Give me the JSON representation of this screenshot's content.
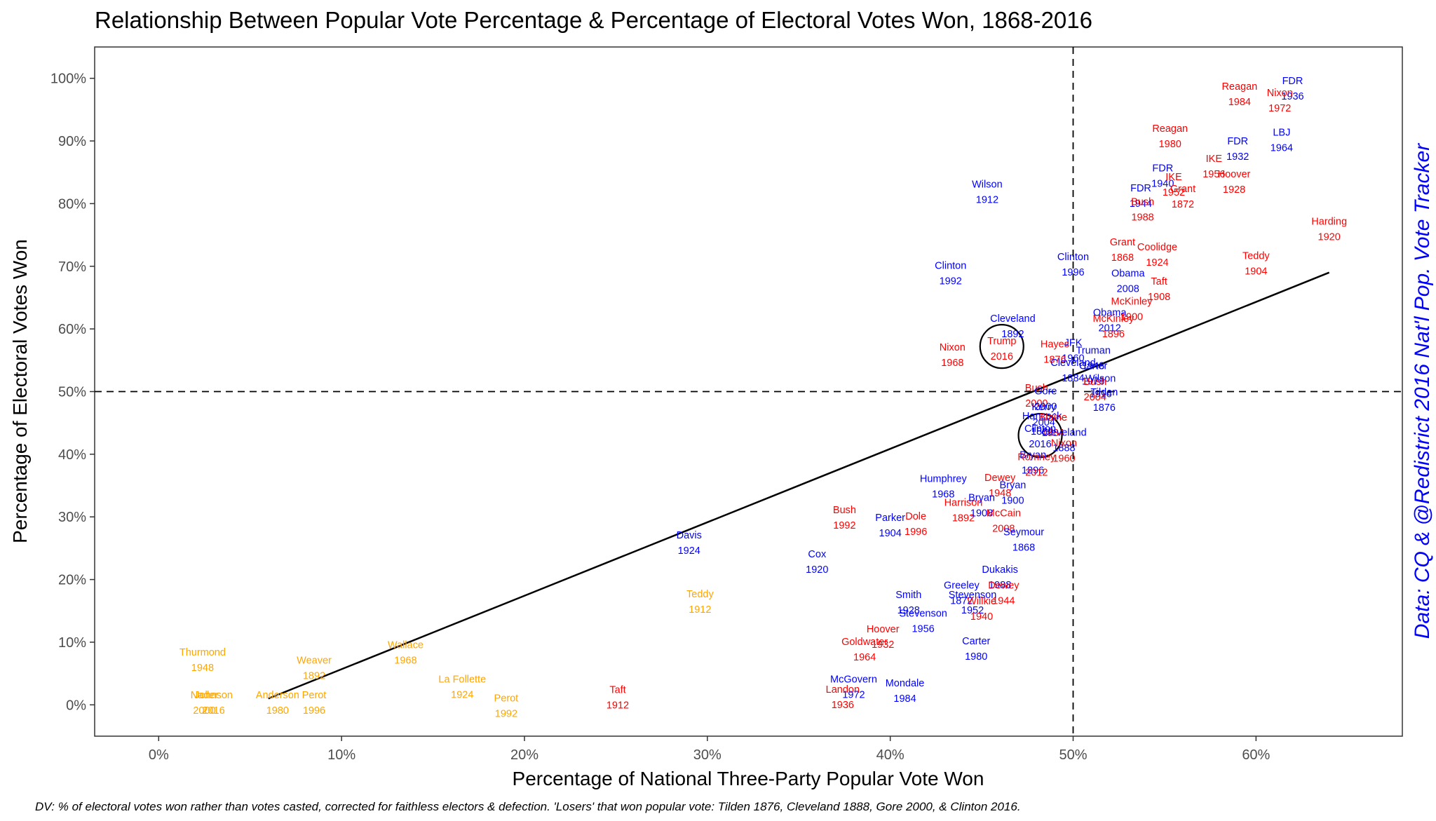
{
  "chart_data": {
    "type": "scatter",
    "title": "Relationship Between Popular Vote Percentage & Percentage of Electoral Votes Won, 1868-2016",
    "xlabel": "Percentage of National Three-Party Popular Vote Won",
    "ylabel": "Percentage of Electoral Votes Won",
    "caption": "DV: % of electoral votes won rather than votes casted, corrected for faithless electors & defection. 'Losers' that won popular vote: Tilden 1876, Cleveland 1888, Gore 2000, & Clinton 2016.",
    "source": "Data: CQ & @Redistrict 2016 Nat'l Pop. Vote Tracker",
    "xlim": [
      -3.5,
      68
    ],
    "ylim": [
      -5,
      105
    ],
    "x_ticks": [
      0,
      10,
      20,
      30,
      40,
      50,
      60
    ],
    "x_tick_labels": [
      "0%",
      "10%",
      "20%",
      "30%",
      "40%",
      "50%",
      "60%"
    ],
    "y_ticks": [
      0,
      10,
      20,
      30,
      40,
      50,
      60,
      70,
      80,
      90,
      100
    ],
    "y_tick_labels": [
      "0%",
      "10%",
      "20%",
      "30%",
      "40%",
      "50%",
      "60%",
      "70%",
      "80%",
      "90%",
      "100%"
    ],
    "reference_lines": {
      "x": 50,
      "y": 50,
      "style": "dashed"
    },
    "trend_line": {
      "x": [
        6,
        64
      ],
      "y": [
        1,
        69
      ]
    },
    "highlight_circles": [
      {
        "x": 46.1,
        "y": 57.2
      },
      {
        "x": 48.2,
        "y": 43.0
      }
    ],
    "grid": false,
    "colors": {
      "dem": "#0000ff",
      "rep": "#ff0000",
      "third": "#ffa500"
    },
    "points": [
      {
        "name": "FDR",
        "year": "1936",
        "x": 62.0,
        "y": 98.5,
        "party": "dem"
      },
      {
        "name": "Reagan",
        "year": "1984",
        "x": 59.1,
        "y": 97.6,
        "party": "rep"
      },
      {
        "name": "Nixon",
        "year": "1972",
        "x": 61.3,
        "y": 96.6,
        "party": "rep"
      },
      {
        "name": "Reagan",
        "year": "1980",
        "x": 55.3,
        "y": 90.9,
        "party": "rep"
      },
      {
        "name": "LBJ",
        "year": "1964",
        "x": 61.4,
        "y": 90.3,
        "party": "dem"
      },
      {
        "name": "FDR",
        "year": "1932",
        "x": 59.0,
        "y": 88.9,
        "party": "dem"
      },
      {
        "name": "IKE",
        "year": "1956",
        "x": 57.7,
        "y": 86.1,
        "party": "rep"
      },
      {
        "name": "FDR",
        "year": "1940",
        "x": 54.9,
        "y": 84.6,
        "party": "dem"
      },
      {
        "name": "Hoover",
        "year": "1928",
        "x": 58.8,
        "y": 83.6,
        "party": "rep"
      },
      {
        "name": "IKE",
        "year": "1952",
        "x": 55.5,
        "y": 83.2,
        "party": "rep"
      },
      {
        "name": "FDR",
        "year": "1944",
        "x": 53.7,
        "y": 81.4,
        "party": "dem"
      },
      {
        "name": "Grant",
        "year": "1872",
        "x": 56.0,
        "y": 81.3,
        "party": "rep"
      },
      {
        "name": "Bush",
        "year": "1988",
        "x": 53.8,
        "y": 79.2,
        "party": "rep"
      },
      {
        "name": "Harding",
        "year": "1920",
        "x": 64.0,
        "y": 76.1,
        "party": "rep"
      },
      {
        "name": "Grant",
        "year": "1868",
        "x": 52.7,
        "y": 72.8,
        "party": "rep"
      },
      {
        "name": "Teddy",
        "year": "1904",
        "x": 60.0,
        "y": 70.6,
        "party": "rep"
      },
      {
        "name": "Clinton",
        "year": "1996",
        "x": 50.0,
        "y": 70.4,
        "party": "dem"
      },
      {
        "name": "Coolidge",
        "year": "1924",
        "x": 54.6,
        "y": 72.0,
        "party": "rep"
      },
      {
        "name": "Clinton",
        "year": "1992",
        "x": 43.3,
        "y": 69.0,
        "party": "dem"
      },
      {
        "name": "Obama",
        "year": "2008",
        "x": 53.0,
        "y": 67.8,
        "party": "dem"
      },
      {
        "name": "Taft",
        "year": "1908",
        "x": 54.7,
        "y": 66.5,
        "party": "rep"
      },
      {
        "name": "McKinley",
        "year": "1900",
        "x": 53.2,
        "y": 63.3,
        "party": "rep"
      },
      {
        "name": "Wilson",
        "year": "1912",
        "x": 45.3,
        "y": 82.0,
        "party": "dem"
      },
      {
        "name": "Obama",
        "year": "2012",
        "x": 52.0,
        "y": 61.5,
        "party": "dem"
      },
      {
        "name": "McKinley",
        "year": "1896",
        "x": 52.2,
        "y": 60.6,
        "party": "rep"
      },
      {
        "name": "Cleveland",
        "year": "1892",
        "x": 46.7,
        "y": 60.6,
        "party": "dem"
      },
      {
        "name": "Nixon",
        "year": "1968",
        "x": 43.4,
        "y": 56.0,
        "party": "rep"
      },
      {
        "name": "Trump",
        "year": "2016",
        "x": 46.1,
        "y": 57.0,
        "party": "rep"
      },
      {
        "name": "JFK",
        "year": "1960",
        "x": 50.0,
        "y": 56.7,
        "party": "dem"
      },
      {
        "name": "Hayes",
        "year": "1876",
        "x": 49.0,
        "y": 56.5,
        "party": "rep"
      },
      {
        "name": "Truman",
        "year": "1948",
        "x": 51.1,
        "y": 55.5,
        "party": "dem"
      },
      {
        "name": "Cleveland",
        "year": "1884",
        "x": 50.0,
        "y": 53.5,
        "party": "dem"
      },
      {
        "name": "Carter",
        "year": "1976",
        "x": 51.1,
        "y": 53.0,
        "party": "dem"
      },
      {
        "name": "Wilson",
        "year": "1916",
        "x": 51.5,
        "y": 51.0,
        "party": "dem"
      },
      {
        "name": "Bush",
        "year": "2004",
        "x": 51.2,
        "y": 50.5,
        "party": "rep"
      },
      {
        "name": "Tilden",
        "year": "1876",
        "x": 51.7,
        "y": 48.8,
        "party": "dem"
      },
      {
        "name": "Bush",
        "year": "2000",
        "x": 48.0,
        "y": 49.5,
        "party": "rep"
      },
      {
        "name": "Gore",
        "year": "2000",
        "x": 48.5,
        "y": 49.0,
        "party": "dem"
      },
      {
        "name": "Kerry",
        "year": "2004",
        "x": 48.4,
        "y": 46.5,
        "party": "dem"
      },
      {
        "name": "Hancock",
        "year": "1880",
        "x": 48.3,
        "y": 45.0,
        "party": "dem"
      },
      {
        "name": "Blaine",
        "year": "1884",
        "x": 48.9,
        "y": 44.8,
        "party": "rep"
      },
      {
        "name": "Clinton",
        "year": "2016",
        "x": 48.2,
        "y": 43.0,
        "party": "dem"
      },
      {
        "name": "Cleveland",
        "year": "1888",
        "x": 49.5,
        "y": 42.4,
        "party": "dem"
      },
      {
        "name": "Nixon",
        "year": "1960",
        "x": 49.5,
        "y": 40.7,
        "party": "rep"
      },
      {
        "name": "Bryan",
        "year": "1896",
        "x": 47.8,
        "y": 38.8,
        "party": "dem"
      },
      {
        "name": "Romney",
        "year": "2012",
        "x": 48.0,
        "y": 38.5,
        "party": "rep"
      },
      {
        "name": "Dewey",
        "year": "1948",
        "x": 46.0,
        "y": 35.2,
        "party": "rep"
      },
      {
        "name": "Bryan",
        "year": "1900",
        "x": 46.7,
        "y": 34.0,
        "party": "dem"
      },
      {
        "name": "Humphrey",
        "year": "1968",
        "x": 42.9,
        "y": 35.0,
        "party": "dem"
      },
      {
        "name": "Harrison",
        "year": "1892",
        "x": 44.0,
        "y": 31.2,
        "party": "rep"
      },
      {
        "name": "Bryan",
        "year": "1908",
        "x": 45.0,
        "y": 32.0,
        "party": "dem"
      },
      {
        "name": "McCain",
        "year": "2008",
        "x": 46.2,
        "y": 29.5,
        "party": "rep"
      },
      {
        "name": "Bush",
        "year": "1992",
        "x": 37.5,
        "y": 30.0,
        "party": "rep"
      },
      {
        "name": "Parker",
        "year": "1904",
        "x": 40.0,
        "y": 28.8,
        "party": "dem"
      },
      {
        "name": "Dole",
        "year": "1996",
        "x": 41.4,
        "y": 29.0,
        "party": "rep"
      },
      {
        "name": "Seymour",
        "year": "1868",
        "x": 47.3,
        "y": 26.5,
        "party": "dem"
      },
      {
        "name": "Davis",
        "year": "1924",
        "x": 29.0,
        "y": 26.0,
        "party": "dem"
      },
      {
        "name": "Cox",
        "year": "1920",
        "x": 36.0,
        "y": 23.0,
        "party": "dem"
      },
      {
        "name": "Dukakis",
        "year": "1988",
        "x": 46.0,
        "y": 20.5,
        "party": "dem"
      },
      {
        "name": "Greeley",
        "year": "1872",
        "x": 43.9,
        "y": 18.0,
        "party": "dem"
      },
      {
        "name": "Dewey",
        "year": "1944",
        "x": 46.2,
        "y": 18.0,
        "party": "rep"
      },
      {
        "name": "Stevenson",
        "year": "1952",
        "x": 44.5,
        "y": 16.5,
        "party": "dem"
      },
      {
        "name": "Willkie",
        "year": "1940",
        "x": 45.0,
        "y": 15.5,
        "party": "rep"
      },
      {
        "name": "Smith",
        "year": "1928",
        "x": 41.0,
        "y": 16.5,
        "party": "dem"
      },
      {
        "name": "Stevenson",
        "year": "1956",
        "x": 41.8,
        "y": 13.5,
        "party": "dem"
      },
      {
        "name": "Teddy",
        "year": "1912",
        "x": 29.6,
        "y": 16.6,
        "party": "third"
      },
      {
        "name": "Hoover",
        "year": "1932",
        "x": 39.6,
        "y": 11.0,
        "party": "rep"
      },
      {
        "name": "Goldwater",
        "year": "1964",
        "x": 38.6,
        "y": 9.0,
        "party": "rep"
      },
      {
        "name": "Carter",
        "year": "1980",
        "x": 44.7,
        "y": 9.1,
        "party": "dem"
      },
      {
        "name": "Thurmond",
        "year": "1948",
        "x": 2.4,
        "y": 7.3,
        "party": "third"
      },
      {
        "name": "Wallace",
        "year": "1968",
        "x": 13.5,
        "y": 8.5,
        "party": "third"
      },
      {
        "name": "Weaver",
        "year": "1892",
        "x": 8.5,
        "y": 6.0,
        "party": "third"
      },
      {
        "name": "La Follette",
        "year": "1924",
        "x": 16.6,
        "y": 3.0,
        "party": "third"
      },
      {
        "name": "McGovern",
        "year": "1972",
        "x": 38.0,
        "y": 3.0,
        "party": "dem"
      },
      {
        "name": "Mondale",
        "year": "1984",
        "x": 40.8,
        "y": 2.4,
        "party": "dem"
      },
      {
        "name": "Landon",
        "year": "1936",
        "x": 37.4,
        "y": 1.4,
        "party": "rep"
      },
      {
        "name": "Taft",
        "year": "1912",
        "x": 25.1,
        "y": 1.3,
        "party": "rep"
      },
      {
        "name": "Nader",
        "year": "2000",
        "x": 2.5,
        "y": 0.5,
        "party": "third"
      },
      {
        "name": "Johnson",
        "year": "2016",
        "x": 3.0,
        "y": 0.5,
        "party": "third"
      },
      {
        "name": "Anderson",
        "year": "1980",
        "x": 6.5,
        "y": 0.5,
        "party": "third"
      },
      {
        "name": "Perot",
        "year": "1996",
        "x": 8.5,
        "y": 0.5,
        "party": "third"
      },
      {
        "name": "Perot",
        "year": "1992",
        "x": 19.0,
        "y": 0.0,
        "party": "third"
      }
    ]
  }
}
